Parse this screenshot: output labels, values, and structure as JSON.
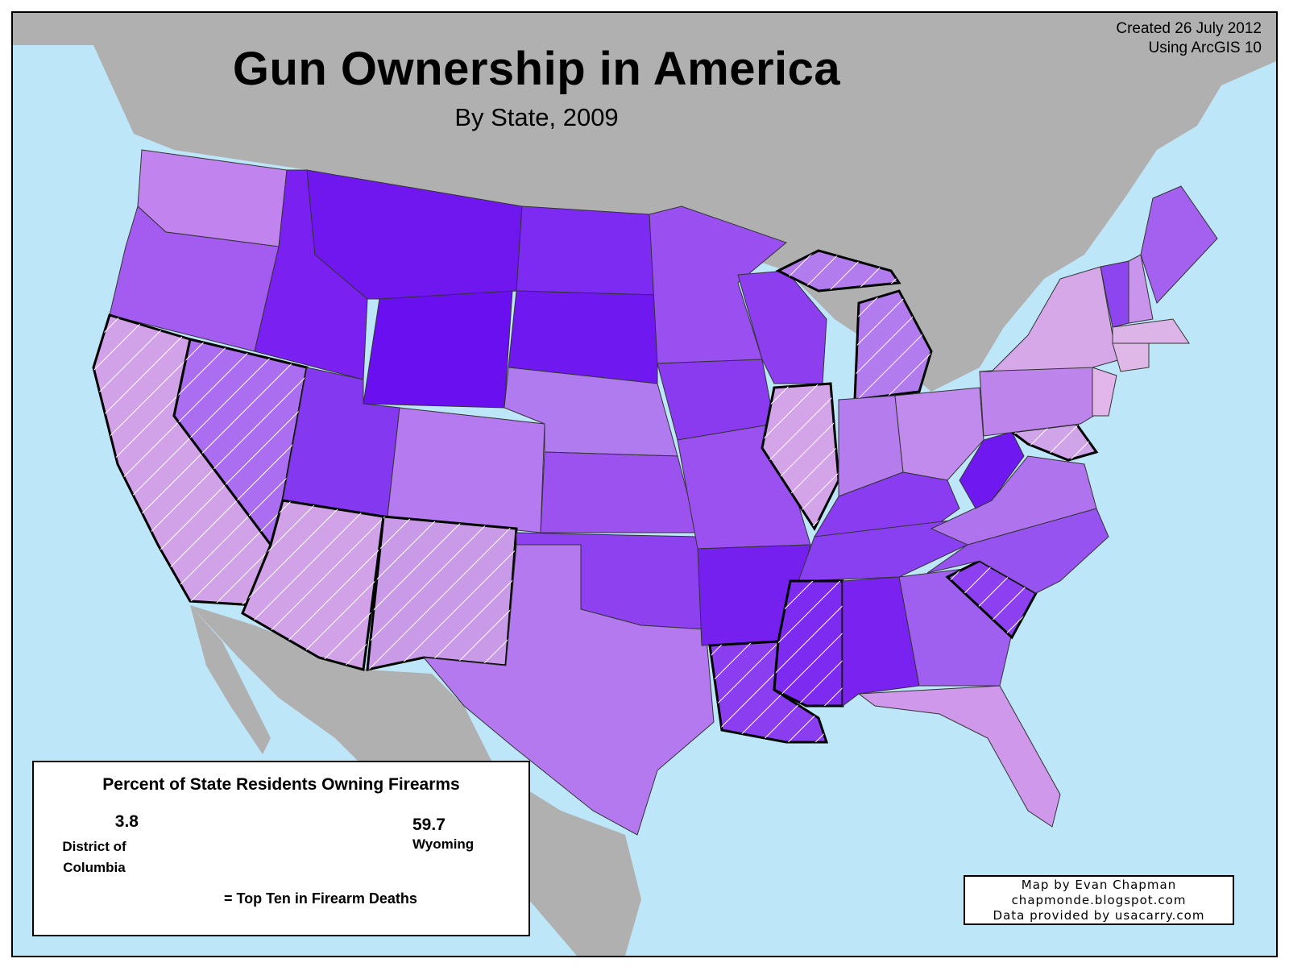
{
  "title": "Gun Ownership in America",
  "subtitle": "By State, 2009",
  "credit": {
    "line1": "Created 26 July 2012",
    "line2": "Using ArcGIS 10"
  },
  "legend": {
    "title": "Percent of State Residents Owning Firearms",
    "min_value": "3.8",
    "min_label": "District of Columbia",
    "max_value": "59.7",
    "max_label": "Wyoming",
    "hatch_label": "= Top Ten in Firearm Deaths",
    "color_low": "#dcaee8",
    "color_high": "#6a0ff0"
  },
  "author": {
    "line1": "Map by Evan Chapman",
    "line2": "chapmonde.blogspot.com",
    "line3": "Data provided by usacarry.com"
  },
  "colors": {
    "water": "#bde6f8",
    "land": "#b0b0b0",
    "border": "#000000"
  }
}
